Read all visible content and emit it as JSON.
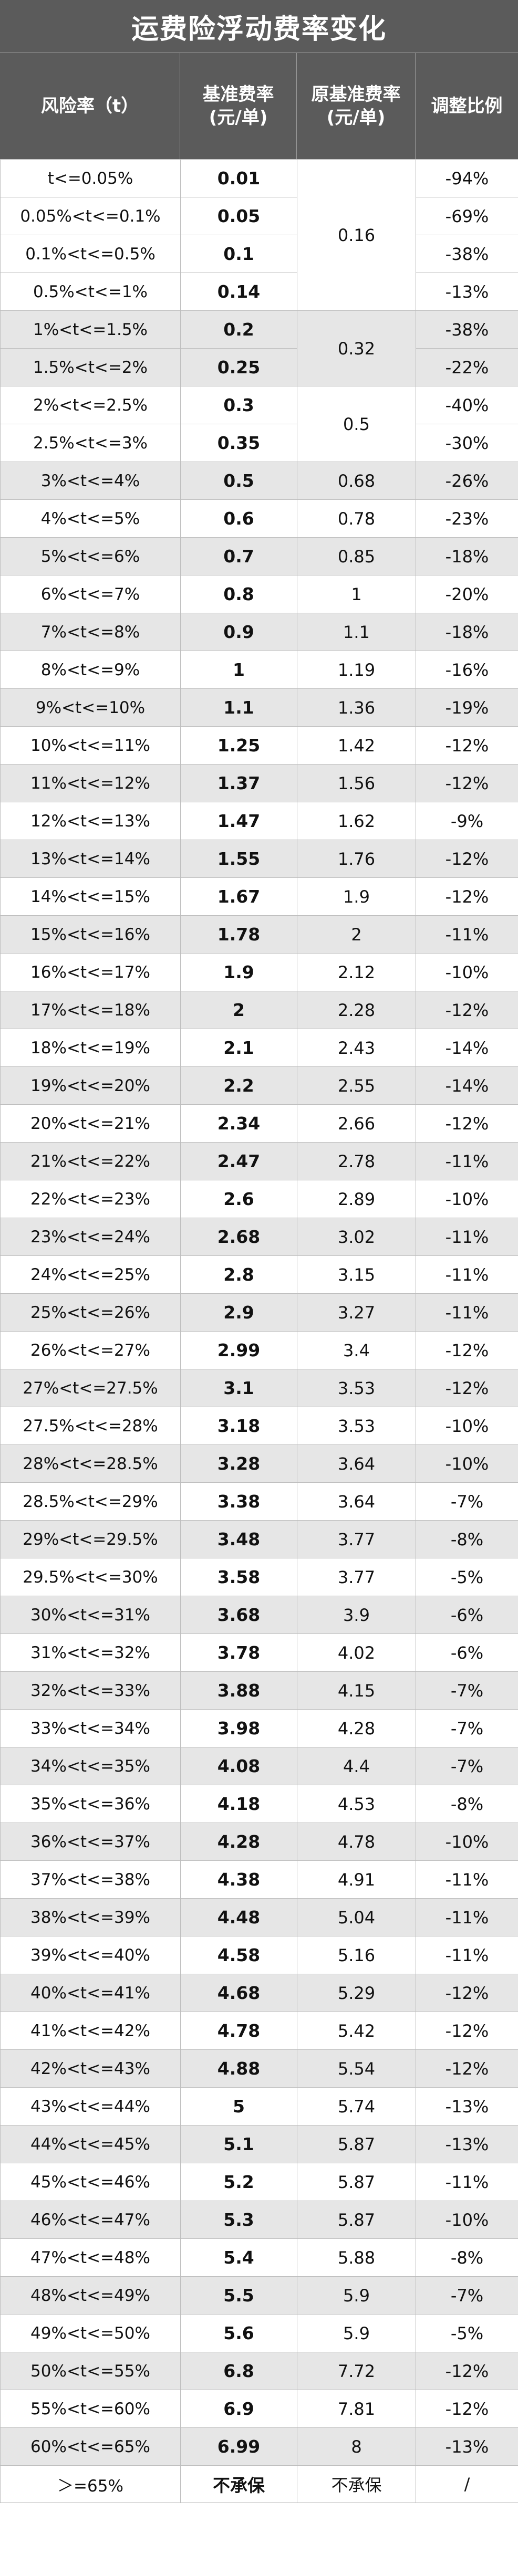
{
  "title": "运费险浮动费率变化",
  "headers": {
    "risk": "风险率（t）",
    "base": "基准费率\n(元/单)",
    "original": "原基准费率\n(元/单)",
    "adjust": "调整比例"
  },
  "rows": [
    {
      "risk": "t<=0.05%",
      "base": "0.01",
      "adjust": "-94%"
    },
    {
      "risk": "0.05%<t<=0.1%",
      "base": "0.05",
      "adjust": "-69%"
    },
    {
      "risk": "0.1%<t<=0.5%",
      "base": "0.1",
      "adjust": "-38%"
    },
    {
      "risk": "0.5%<t<=1%",
      "base": "0.14",
      "adjust": "-13%"
    },
    {
      "risk": "1%<t<=1.5%",
      "base": "0.2",
      "adjust": "-38%"
    },
    {
      "risk": "1.5%<t<=2%",
      "base": "0.25",
      "adjust": "-22%"
    },
    {
      "risk": "2%<t<=2.5%",
      "base": "0.3",
      "adjust": "-40%"
    },
    {
      "risk": "2.5%<t<=3%",
      "base": "0.35",
      "adjust": "-30%"
    },
    {
      "risk": "3%<t<=4%",
      "base": "0.5",
      "original": "0.68",
      "adjust": "-26%"
    },
    {
      "risk": "4%<t<=5%",
      "base": "0.6",
      "original": "0.78",
      "adjust": "-23%"
    },
    {
      "risk": "5%<t<=6%",
      "base": "0.7",
      "original": "0.85",
      "adjust": "-18%"
    },
    {
      "risk": "6%<t<=7%",
      "base": "0.8",
      "original": "1",
      "adjust": "-20%"
    },
    {
      "risk": "7%<t<=8%",
      "base": "0.9",
      "original": "1.1",
      "adjust": "-18%"
    },
    {
      "risk": "8%<t<=9%",
      "base": "1",
      "original": "1.19",
      "adjust": "-16%"
    },
    {
      "risk": "9%<t<=10%",
      "base": "1.1",
      "original": "1.36",
      "adjust": "-19%"
    },
    {
      "risk": "10%<t<=11%",
      "base": "1.25",
      "original": "1.42",
      "adjust": "-12%"
    },
    {
      "risk": "11%<t<=12%",
      "base": "1.37",
      "original": "1.56",
      "adjust": "-12%"
    },
    {
      "risk": "12%<t<=13%",
      "base": "1.47",
      "original": "1.62",
      "adjust": "-9%"
    },
    {
      "risk": "13%<t<=14%",
      "base": "1.55",
      "original": "1.76",
      "adjust": "-12%"
    },
    {
      "risk": "14%<t<=15%",
      "base": "1.67",
      "original": "1.9",
      "adjust": "-12%"
    },
    {
      "risk": "15%<t<=16%",
      "base": "1.78",
      "original": "2",
      "adjust": "-11%"
    },
    {
      "risk": "16%<t<=17%",
      "base": "1.9",
      "original": "2.12",
      "adjust": "-10%"
    },
    {
      "risk": "17%<t<=18%",
      "base": "2",
      "original": "2.28",
      "adjust": "-12%"
    },
    {
      "risk": "18%<t<=19%",
      "base": "2.1",
      "original": "2.43",
      "adjust": "-14%"
    },
    {
      "risk": "19%<t<=20%",
      "base": "2.2",
      "original": "2.55",
      "adjust": "-14%"
    },
    {
      "risk": "20%<t<=21%",
      "base": "2.34",
      "original": "2.66",
      "adjust": "-12%"
    },
    {
      "risk": "21%<t<=22%",
      "base": "2.47",
      "original": "2.78",
      "adjust": "-11%"
    },
    {
      "risk": "22%<t<=23%",
      "base": "2.6",
      "original": "2.89",
      "adjust": "-10%"
    },
    {
      "risk": "23%<t<=24%",
      "base": "2.68",
      "original": "3.02",
      "adjust": "-11%"
    },
    {
      "risk": "24%<t<=25%",
      "base": "2.8",
      "original": "3.15",
      "adjust": "-11%"
    },
    {
      "risk": "25%<t<=26%",
      "base": "2.9",
      "original": "3.27",
      "adjust": "-11%"
    },
    {
      "risk": "26%<t<=27%",
      "base": "2.99",
      "original": "3.4",
      "adjust": "-12%"
    },
    {
      "risk": "27%<t<=27.5%",
      "base": "3.1",
      "original": "3.53",
      "adjust": "-12%"
    },
    {
      "risk": "27.5%<t<=28%",
      "base": "3.18",
      "original": "3.53",
      "adjust": "-10%"
    },
    {
      "risk": "28%<t<=28.5%",
      "base": "3.28",
      "original": "3.64",
      "adjust": "-10%"
    },
    {
      "risk": "28.5%<t<=29%",
      "base": "3.38",
      "original": "3.64",
      "adjust": "-7%"
    },
    {
      "risk": "29%<t<=29.5%",
      "base": "3.48",
      "original": "3.77",
      "adjust": "-8%"
    },
    {
      "risk": "29.5%<t<=30%",
      "base": "3.58",
      "original": "3.77",
      "adjust": "-5%"
    },
    {
      "risk": "30%<t<=31%",
      "base": "3.68",
      "original": "3.9",
      "adjust": "-6%"
    },
    {
      "risk": "31%<t<=32%",
      "base": "3.78",
      "original": "4.02",
      "adjust": "-6%"
    },
    {
      "risk": "32%<t<=33%",
      "base": "3.88",
      "original": "4.15",
      "adjust": "-7%"
    },
    {
      "risk": "33%<t<=34%",
      "base": "3.98",
      "original": "4.28",
      "adjust": "-7%"
    },
    {
      "risk": "34%<t<=35%",
      "base": "4.08",
      "original": "4.4",
      "adjust": "-7%"
    },
    {
      "risk": "35%<t<=36%",
      "base": "4.18",
      "original": "4.53",
      "adjust": "-8%"
    },
    {
      "risk": "36%<t<=37%",
      "base": "4.28",
      "original": "4.78",
      "adjust": "-10%"
    },
    {
      "risk": "37%<t<=38%",
      "base": "4.38",
      "original": "4.91",
      "adjust": "-11%"
    },
    {
      "risk": "38%<t<=39%",
      "base": "4.48",
      "original": "5.04",
      "adjust": "-11%"
    },
    {
      "risk": "39%<t<=40%",
      "base": "4.58",
      "original": "5.16",
      "adjust": "-11%"
    },
    {
      "risk": "40%<t<=41%",
      "base": "4.68",
      "original": "5.29",
      "adjust": "-12%"
    },
    {
      "risk": "41%<t<=42%",
      "base": "4.78",
      "original": "5.42",
      "adjust": "-12%"
    },
    {
      "risk": "42%<t<=43%",
      "base": "4.88",
      "original": "5.54",
      "adjust": "-12%"
    },
    {
      "risk": "43%<t<=44%",
      "base": "5",
      "original": "5.74",
      "adjust": "-13%"
    },
    {
      "risk": "44%<t<=45%",
      "base": "5.1",
      "original": "5.87",
      "adjust": "-13%"
    },
    {
      "risk": "45%<t<=46%",
      "base": "5.2",
      "original": "5.87",
      "adjust": "-11%"
    },
    {
      "risk": "46%<t<=47%",
      "base": "5.3",
      "original": "5.87",
      "adjust": "-10%"
    },
    {
      "risk": "47%<t<=48%",
      "base": "5.4",
      "original": "5.88",
      "adjust": "-8%"
    },
    {
      "risk": "48%<t<=49%",
      "base": "5.5",
      "original": "5.9",
      "adjust": "-7%"
    },
    {
      "risk": "49%<t<=50%",
      "base": "5.6",
      "original": "5.9",
      "adjust": "-5%"
    },
    {
      "risk": "50%<t<=55%",
      "base": "6.8",
      "original": "7.72",
      "adjust": "-12%"
    },
    {
      "risk": "55%<t<=60%",
      "base": "6.9",
      "original": "7.81",
      "adjust": "-12%"
    },
    {
      "risk": "60%<t<=65%",
      "base": "6.99",
      "original": "8",
      "adjust": "-13%"
    },
    {
      "risk": "＞=65%",
      "base": "不承保",
      "original": "不承保",
      "adjust": "/"
    }
  ],
  "merged_original": [
    {
      "start": 0,
      "span": 4,
      "value": "0.16"
    },
    {
      "start": 4,
      "span": 2,
      "value": "0.32"
    },
    {
      "start": 6,
      "span": 2,
      "value": "0.5"
    }
  ]
}
